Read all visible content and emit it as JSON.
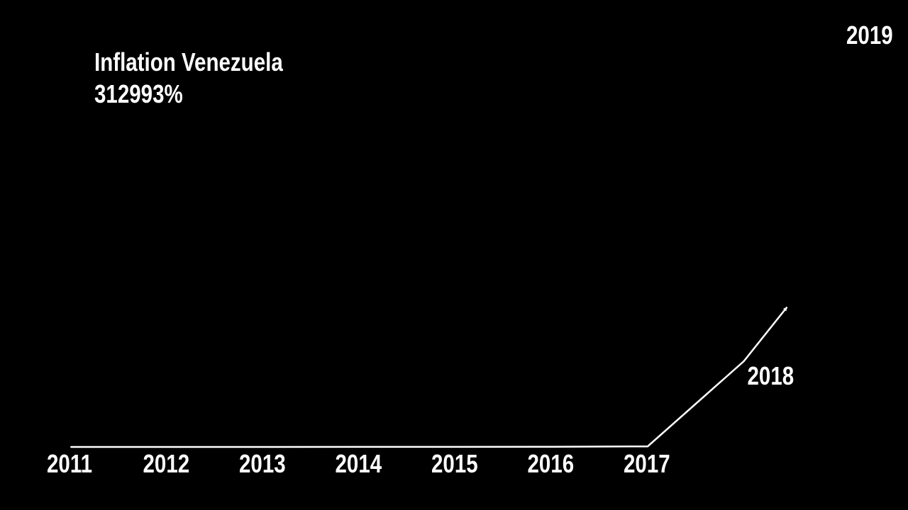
{
  "title": "Inflation Venezuela",
  "current_value": "312993%",
  "chart_data": {
    "type": "line",
    "title": "Inflation Venezuela",
    "categories": [
      "2011",
      "2012",
      "2013",
      "2014",
      "2015",
      "2016",
      "2017",
      "2018",
      "2019"
    ],
    "values": [
      27.6,
      20.1,
      56.2,
      68.5,
      180.9,
      274.4,
      862.6,
      130060,
      312993
    ],
    "unit": "%",
    "ylim": [
      0,
      614000
    ],
    "animation_progress_to_last_point": 0.45,
    "grid": false,
    "legend": "none",
    "line_color": "#ffffff",
    "background": "#000000"
  }
}
